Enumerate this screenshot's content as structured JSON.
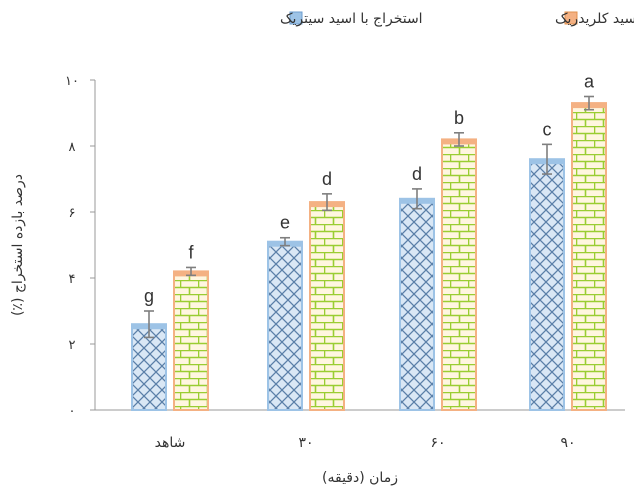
{
  "chart_data": {
    "type": "bar",
    "categories": [
      "شاهد",
      "۳۰",
      "۶۰",
      "۹۰"
    ],
    "series": [
      {
        "name": "استخراج با اسید سیتریک",
        "values": [
          2.6,
          5.1,
          6.4,
          7.6
        ],
        "errors": [
          0.4,
          0.12,
          0.3,
          0.45
        ],
        "labels": [
          "g",
          "e",
          "d",
          "c"
        ],
        "color": "#9dc3e6",
        "pattern": "crosshatch"
      },
      {
        "name": "استخراج با اسید کلریدریک",
        "values": [
          4.2,
          6.3,
          8.2,
          9.3
        ],
        "errors": [
          0.12,
          0.25,
          0.2,
          0.2
        ],
        "labels": [
          "f",
          "d",
          "b",
          "a"
        ],
        "color": "#f4b183",
        "pattern": "brick"
      }
    ],
    "ylim": [
      0,
      10
    ],
    "yticks": [
      0,
      2,
      4,
      6,
      8,
      10
    ],
    "ytick_labels": [
      "۰",
      "۲",
      "۴",
      "۶",
      "۸",
      "۱۰"
    ],
    "xlabel": "زمان (دقیقه)",
    "ylabel": "درصد بازده استخراج (٪)",
    "legend_position": "top"
  }
}
